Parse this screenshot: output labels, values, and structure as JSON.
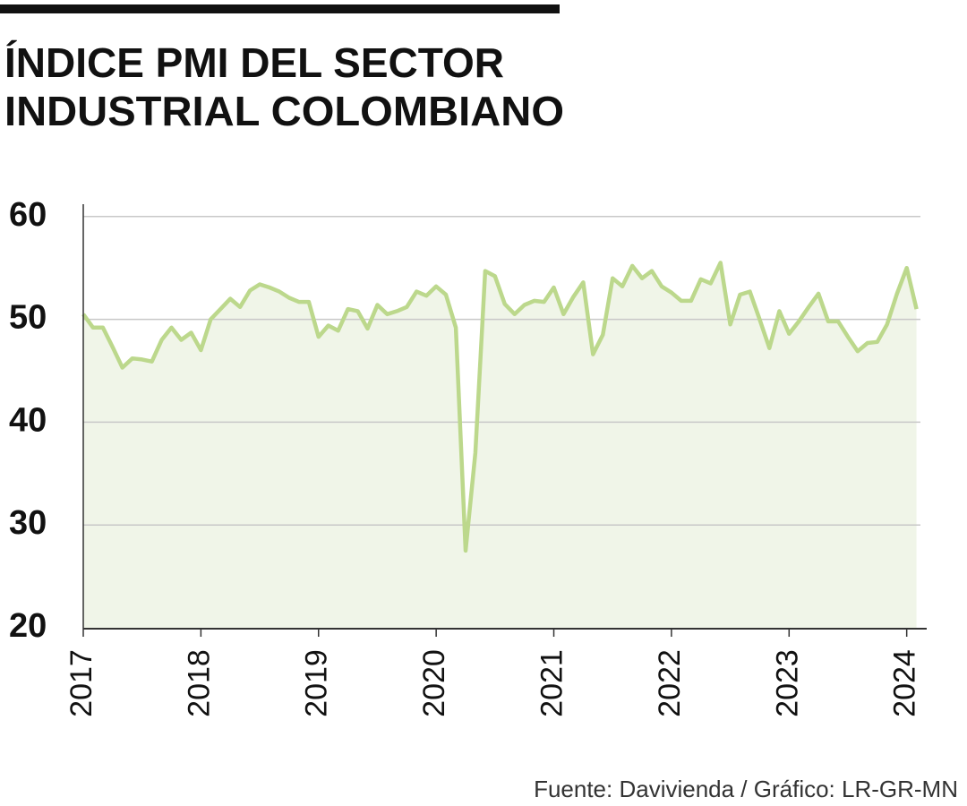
{
  "chart_data": {
    "type": "line",
    "title": [
      "ÍNDICE PMI DEL SECTOR",
      "INDUSTRIAL COLOMBIANO"
    ],
    "source": "Fuente: Davivienda / Gráfico: LR-GR-MN",
    "x": [
      2017,
      2017.083,
      2017.167,
      2017.25,
      2017.333,
      2017.417,
      2017.5,
      2017.583,
      2017.667,
      2017.75,
      2017.833,
      2017.917,
      2018,
      2018.083,
      2018.167,
      2018.25,
      2018.333,
      2018.417,
      2018.5,
      2018.583,
      2018.667,
      2018.75,
      2018.833,
      2018.917,
      2019,
      2019.083,
      2019.167,
      2019.25,
      2019.333,
      2019.417,
      2019.5,
      2019.583,
      2019.667,
      2019.75,
      2019.833,
      2019.917,
      2020,
      2020.083,
      2020.167,
      2020.25,
      2020.333,
      2020.417,
      2020.5,
      2020.583,
      2020.667,
      2020.75,
      2020.833,
      2020.917,
      2021,
      2021.083,
      2021.167,
      2021.25,
      2021.333,
      2021.417,
      2021.5,
      2021.583,
      2021.667,
      2021.75,
      2021.833,
      2021.917,
      2022,
      2022.083,
      2022.167,
      2022.25,
      2022.333,
      2022.417,
      2022.5,
      2022.583,
      2022.667,
      2022.75,
      2022.833,
      2022.917,
      2023,
      2023.083,
      2023.167,
      2023.25,
      2023.333,
      2023.417,
      2023.5,
      2023.583,
      2023.667,
      2023.75,
      2023.833,
      2023.917,
      2024,
      2024.083
    ],
    "values": [
      50.5,
      49.2,
      49.2,
      47.3,
      45.3,
      46.2,
      46.1,
      45.9,
      48.0,
      49.2,
      48.0,
      48.7,
      47.0,
      50.0,
      51.0,
      52.0,
      51.2,
      52.8,
      53.4,
      53.1,
      52.7,
      52.1,
      51.7,
      51.7,
      48.3,
      49.4,
      48.9,
      51.0,
      50.8,
      49.1,
      51.4,
      50.5,
      50.8,
      51.2,
      52.7,
      52.3,
      53.2,
      52.4,
      49.2,
      27.5,
      37.0,
      54.7,
      54.2,
      51.5,
      50.5,
      51.4,
      51.8,
      51.7,
      53.1,
      50.5,
      52.2,
      53.6,
      46.6,
      48.5,
      54.0,
      53.2,
      55.2,
      54.0,
      54.7,
      53.2,
      52.6,
      51.8,
      51.8,
      53.9,
      53.5,
      55.5,
      49.5,
      52.4,
      52.7,
      50.0,
      47.2,
      50.8,
      48.6,
      49.8,
      51.2,
      52.5,
      49.8,
      49.8,
      48.3,
      46.9,
      47.7,
      47.8,
      49.5,
      52.5,
      55.0,
      51.0
    ],
    "color": "#bcd88c",
    "fill_color": "#f0f5e8",
    "xlim": [
      2017,
      2024.17
    ],
    "xticks": [
      2017,
      2018,
      2019,
      2020,
      2021,
      2022,
      2023,
      2024
    ],
    "ylim": [
      20,
      61.2
    ],
    "yticks": [
      20,
      30,
      40,
      50,
      60
    ],
    "grid": true
  }
}
